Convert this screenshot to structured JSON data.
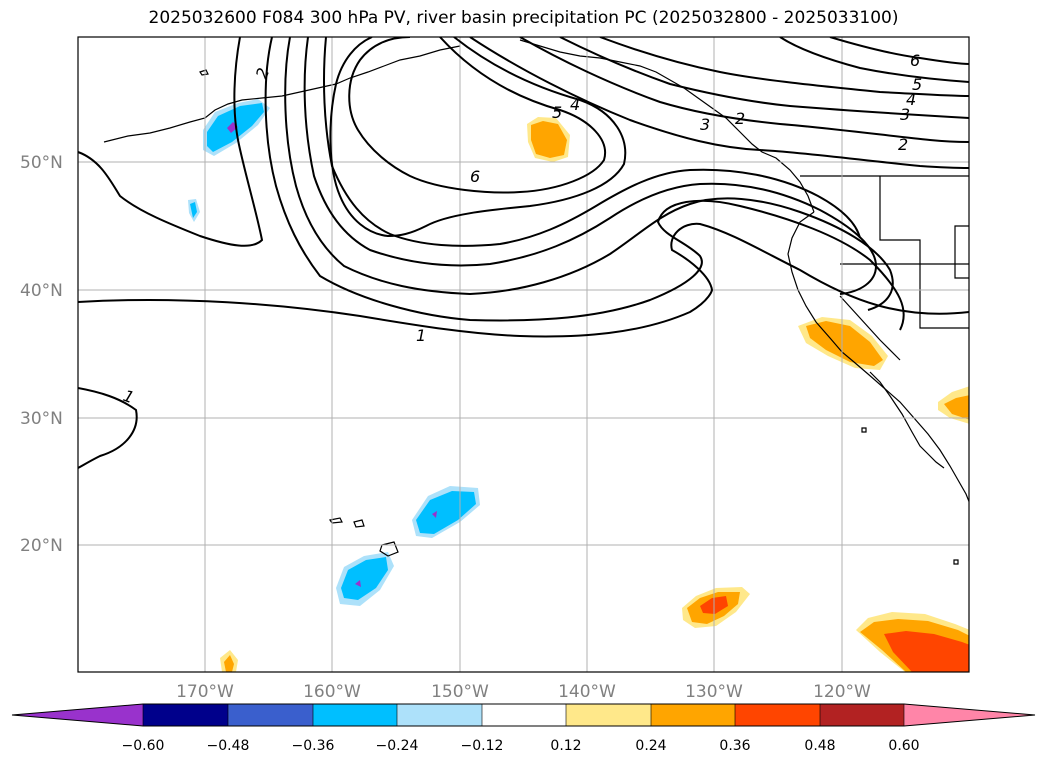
{
  "title": "2025032600 F084 300 hPa PV, river basin precipitation PC (2025032800 - 2025033100)",
  "latitude_labels": [
    "50°N",
    "40°N",
    "30°N",
    "20°N"
  ],
  "longitude_labels": [
    "170°W",
    "160°W",
    "150°W",
    "140°W",
    "130°W",
    "120°W"
  ],
  "pv_contour_labels": [
    "6",
    "5",
    "4",
    "3",
    "2",
    "1"
  ],
  "colorbar": {
    "ticks": [
      "−0.60",
      "−0.48",
      "−0.36",
      "−0.24",
      "−0.12",
      "0.12",
      "0.24",
      "0.36",
      "0.48",
      "0.60"
    ],
    "colors": [
      "#9932CC",
      "#00008B",
      "#3A5FCD",
      "#00BFFF",
      "#ADE1FA",
      "#FFFFFF",
      "#FFE88A",
      "#FFA500",
      "#FF4500",
      "#B22222",
      "#FF85A8"
    ]
  },
  "colors": {
    "negative_strong": "#9932CC",
    "negative": "#00BFFF",
    "negative_light": "#ADE1FA",
    "positive_light": "#FFE88A",
    "positive": "#FFA500",
    "positive_strong": "#FF4500"
  }
}
